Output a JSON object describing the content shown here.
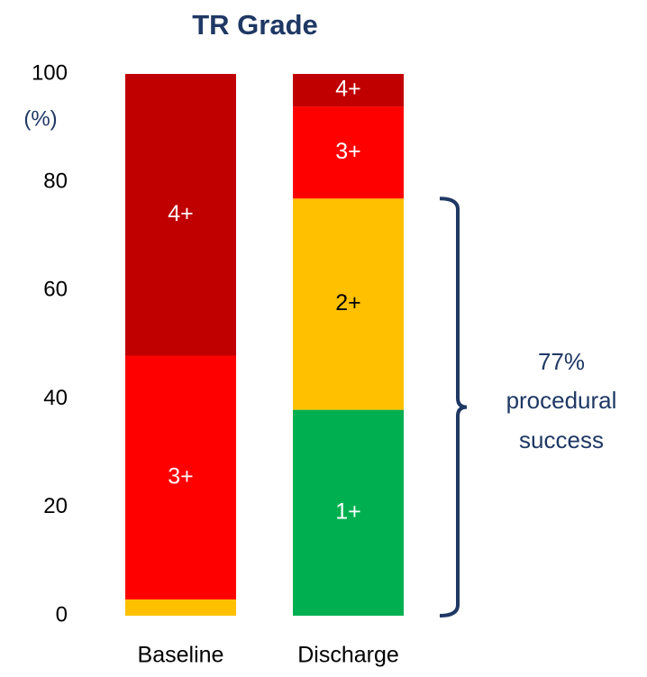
{
  "chart_data": {
    "type": "stacked_bar",
    "title": "TR Grade",
    "y_label": "(%)",
    "categories": [
      "Baseline",
      "Discharge"
    ],
    "series": [
      {
        "name": "1+",
        "color": "#00b050",
        "label_color": "#ffffff",
        "values": [
          0,
          38
        ]
      },
      {
        "name": "2+",
        "color": "#ffc000",
        "label_color": "#000000",
        "values": [
          3,
          39
        ]
      },
      {
        "name": "3+",
        "color": "#ff0000",
        "label_color": "#ffffff",
        "values": [
          45,
          17
        ]
      },
      {
        "name": "4+",
        "color": "#c00000",
        "label_color": "#ffffff",
        "values": [
          52,
          6
        ]
      }
    ],
    "ylim": [
      0,
      100
    ],
    "yticks": [
      0,
      20,
      40,
      60,
      80,
      100
    ],
    "grid": false,
    "annotation": {
      "lines": [
        "77%",
        "procedural",
        "success"
      ],
      "range": [
        0,
        77
      ],
      "color": "#1f3864"
    }
  }
}
